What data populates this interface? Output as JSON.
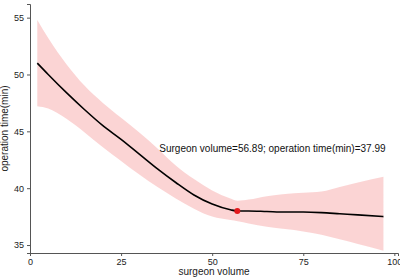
{
  "chart_data": {
    "type": "line",
    "x_label": "surgeon volume",
    "y_label": "operation time(min)",
    "x": [
      2,
      5,
      10,
      15,
      20,
      25,
      30,
      35,
      40,
      45,
      50,
      55,
      57,
      60,
      65,
      70,
      75,
      80,
      85,
      90,
      97
    ],
    "values": [
      51.0,
      50.0,
      48.4,
      46.9,
      45.5,
      44.3,
      43.0,
      41.7,
      40.5,
      39.4,
      38.6,
      38.1,
      38.0,
      38.0,
      37.95,
      37.9,
      37.9,
      37.85,
      37.75,
      37.65,
      37.5
    ],
    "ci_lower": [
      47.2,
      47.0,
      46.1,
      44.9,
      43.6,
      42.4,
      41.2,
      40.1,
      39.1,
      38.2,
      37.5,
      37.2,
      37.1,
      36.9,
      36.6,
      36.4,
      36.2,
      35.9,
      35.5,
      35.1,
      34.5
    ],
    "ci_upper": [
      54.8,
      53.2,
      50.9,
      49.0,
      47.5,
      46.2,
      44.9,
      43.5,
      42.0,
      40.8,
      39.8,
      39.1,
      38.9,
      39.0,
      39.3,
      39.5,
      39.6,
      39.7,
      40.1,
      40.5,
      41.0
    ],
    "color": "#000000",
    "annotations": [
      {
        "text": "Surgeon volume=56.89; operation time(min)=37.99",
        "x": 56.89,
        "y": 37.99
      }
    ],
    "xlim": [
      0,
      101
    ],
    "ylim": [
      34.3,
      56.2
    ],
    "xticks": [
      0,
      25,
      50,
      75,
      100
    ],
    "yticks": [
      35,
      40,
      45,
      50,
      55
    ],
    "grid": false
  }
}
